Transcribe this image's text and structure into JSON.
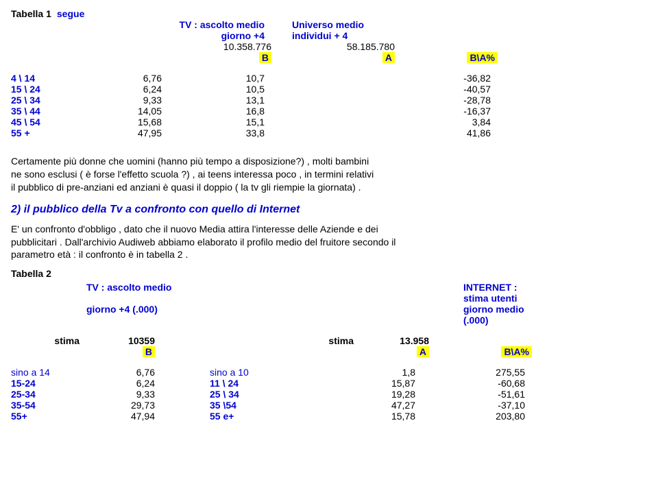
{
  "t1": {
    "title_left": "Tabella 1",
    "title_segue": "segue",
    "hdr_tv1": "TV : ascolto medio",
    "hdr_uni1": "Universo medio",
    "hdr_tv2": "giorno +4",
    "hdr_uni2": "individui + 4",
    "val_tv": "10.358.776",
    "val_uni": "58.185.780",
    "col_b": "B",
    "col_a": "A",
    "col_ba": "B\\A%",
    "rows": [
      {
        "age": "4 \\ 14",
        "v1": "6,76",
        "v2": "10,7",
        "v3": "-36,82"
      },
      {
        "age": "15 \\ 24",
        "v1": "6,24",
        "v2": "10,5",
        "v3": "-40,57"
      },
      {
        "age": "25 \\ 34",
        "v1": "9,33",
        "v2": "13,1",
        "v3": "-28,78"
      },
      {
        "age": "35 \\ 44",
        "v1": "14,05",
        "v2": "16,8",
        "v3": "-16,37"
      },
      {
        "age": "45 \\ 54",
        "v1": "15,68",
        "v2": "15,1",
        "v3": "3,84"
      },
      {
        "age": "55 +",
        "v1": "47,95",
        "v2": "33,8",
        "v3": "41,86"
      }
    ]
  },
  "para1_a": "Certamente più donne che uomini  (hanno più tempo a disposizione?) , molti bambini",
  "para1_b": "ne sono esclusi ( è forse l'effetto scuola ?)  , ai teens interessa poco  , in termini relativi",
  "para1_c": "il pubblico di pre-anziani ed anziani è quasi il doppio ( la tv gli riempie la giornata) .",
  "heading2": "2) il pubblico della Tv a confronto con quello di Internet",
  "para2_a": "E' un confronto d'obbligo , dato che il nuovo Media attira l'interesse delle Aziende e dei",
  "para2_b": "pubblicitari . Dall'archivio Audiweb abbiamo elaborato il profilo medio del fruitore secondo il",
  "para2_c": "parametro età : il confronto è in tabella 2 .",
  "t2": {
    "title": "Tabella 2",
    "hdr_tv1": "TV : ascolto medio",
    "hdr_net1": "INTERNET :  stima utenti",
    "hdr_tv2": "giorno +4  (.000)",
    "hdr_net2": "giorno medio (.000)",
    "stima_label": "stima",
    "stima_tv": "10359",
    "stima_net": "13.958",
    "col_b": "B",
    "col_a": "A",
    "col_ba": "B\\A%",
    "rows": [
      {
        "ageL": "sino a 14",
        "vL": "6,76",
        "ageR": "sino a 10",
        "vR": "1,8",
        "ba": "275,55"
      },
      {
        "ageL": "15-24",
        "vL": "6,24",
        "ageR": "11 \\  24",
        "vR": "15,87",
        "ba": "-60,68"
      },
      {
        "ageL": "25-34",
        "vL": "9,33",
        "ageR": "25 \\ 34",
        "vR": "19,28",
        "ba": "-51,61"
      },
      {
        "ageL": "35-54",
        "vL": "29,73",
        "ageR": "35 \\54",
        "vR": "47,27",
        "ba": "-37,10"
      },
      {
        "ageL": "55+",
        "vL": "47,94",
        "ageR": "55 e+",
        "vR": "15,78",
        "ba": "203,80"
      }
    ]
  }
}
